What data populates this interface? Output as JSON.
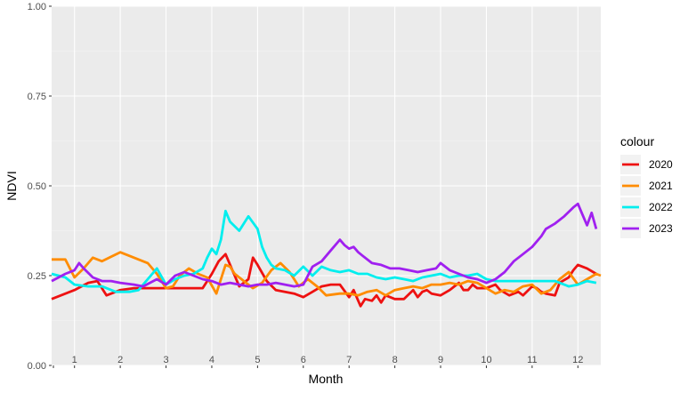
{
  "chart_data": {
    "type": "line",
    "xlabel": "Month",
    "ylabel": "NDVI",
    "xlim": [
      0.5,
      12.5
    ],
    "ylim": [
      0,
      1
    ],
    "y_ticks": [
      "0.00",
      "0.25",
      "0.50",
      "0.75",
      "1.00"
    ],
    "y_tick_values": [
      0,
      0.25,
      0.5,
      0.75,
      1
    ],
    "x_tick_labels": [
      "1",
      "2",
      "3",
      "4",
      "5",
      "6",
      "7",
      "8",
      "9",
      "10",
      "11",
      "12"
    ],
    "grid": true,
    "legend_title": "colour",
    "legend_position": "right",
    "series": [
      {
        "name": "2020",
        "color": "#ee1111",
        "x": [
          0.5,
          1.0,
          1.3,
          1.5,
          1.7,
          2.0,
          2.3,
          2.6,
          3.0,
          3.5,
          3.8,
          4.0,
          4.15,
          4.3,
          4.5,
          4.6,
          4.8,
          4.9,
          5.0,
          5.2,
          5.4,
          5.6,
          5.8,
          6.0,
          6.2,
          6.4,
          6.6,
          6.8,
          7.0,
          7.1,
          7.2,
          7.25,
          7.35,
          7.5,
          7.6,
          7.7,
          7.8,
          8.0,
          8.2,
          8.4,
          8.5,
          8.6,
          8.7,
          8.8,
          9.0,
          9.2,
          9.4,
          9.5,
          9.6,
          9.7,
          9.8,
          10.0,
          10.2,
          10.3,
          10.5,
          10.7,
          10.8,
          11.0,
          11.1,
          11.2,
          11.3,
          11.5,
          11.6,
          11.8,
          11.9,
          12.0,
          12.2,
          12.4
        ],
        "y": [
          0.185,
          0.21,
          0.23,
          0.235,
          0.195,
          0.21,
          0.215,
          0.215,
          0.215,
          0.215,
          0.215,
          0.255,
          0.29,
          0.31,
          0.25,
          0.22,
          0.24,
          0.3,
          0.28,
          0.235,
          0.21,
          0.205,
          0.2,
          0.19,
          0.205,
          0.22,
          0.225,
          0.225,
          0.19,
          0.21,
          0.18,
          0.165,
          0.185,
          0.18,
          0.195,
          0.175,
          0.195,
          0.185,
          0.185,
          0.21,
          0.19,
          0.205,
          0.21,
          0.2,
          0.195,
          0.21,
          0.23,
          0.21,
          0.21,
          0.225,
          0.215,
          0.215,
          0.225,
          0.21,
          0.195,
          0.205,
          0.195,
          0.22,
          0.215,
          0.205,
          0.2,
          0.195,
          0.23,
          0.245,
          0.265,
          0.28,
          0.27,
          0.255
        ]
      },
      {
        "name": "2021",
        "color": "#ff8c00",
        "x": [
          0.5,
          0.8,
          1.0,
          1.2,
          1.4,
          1.6,
          2.0,
          2.3,
          2.6,
          2.8,
          3.0,
          3.15,
          3.3,
          3.5,
          3.7,
          3.9,
          4.1,
          4.2,
          4.3,
          4.4,
          4.5,
          4.7,
          4.9,
          5.1,
          5.3,
          5.5,
          5.7,
          5.9,
          6.1,
          6.3,
          6.5,
          6.8,
          7.0,
          7.2,
          7.4,
          7.6,
          7.8,
          8.0,
          8.2,
          8.4,
          8.6,
          8.8,
          9.0,
          9.2,
          9.4,
          9.6,
          9.8,
          10.0,
          10.2,
          10.4,
          10.6,
          10.8,
          11.0,
          11.2,
          11.4,
          11.6,
          11.8,
          12.0,
          12.2,
          12.4,
          12.5
        ],
        "y": [
          0.295,
          0.295,
          0.245,
          0.27,
          0.3,
          0.29,
          0.315,
          0.3,
          0.285,
          0.255,
          0.215,
          0.22,
          0.25,
          0.27,
          0.255,
          0.245,
          0.2,
          0.24,
          0.28,
          0.275,
          0.255,
          0.235,
          0.215,
          0.23,
          0.265,
          0.285,
          0.26,
          0.22,
          0.24,
          0.22,
          0.195,
          0.2,
          0.2,
          0.195,
          0.205,
          0.21,
          0.195,
          0.21,
          0.215,
          0.22,
          0.215,
          0.225,
          0.225,
          0.23,
          0.225,
          0.235,
          0.23,
          0.215,
          0.2,
          0.21,
          0.205,
          0.22,
          0.225,
          0.2,
          0.21,
          0.24,
          0.26,
          0.225,
          0.24,
          0.255,
          0.25
        ]
      },
      {
        "name": "2022",
        "color": "#00eeee",
        "x": [
          0.5,
          0.8,
          1.0,
          1.3,
          1.6,
          1.9,
          2.2,
          2.4,
          2.6,
          2.8,
          3.0,
          3.2,
          3.4,
          3.6,
          3.8,
          3.9,
          4.0,
          4.1,
          4.2,
          4.3,
          4.4,
          4.6,
          4.8,
          5.0,
          5.1,
          5.2,
          5.3,
          5.4,
          5.6,
          5.8,
          6.0,
          6.2,
          6.4,
          6.6,
          6.8,
          7.0,
          7.2,
          7.4,
          7.6,
          7.8,
          8.0,
          8.2,
          8.4,
          8.6,
          8.8,
          9.0,
          9.2,
          9.4,
          9.6,
          9.8,
          10.0,
          10.2,
          10.5,
          10.8,
          11.0,
          11.3,
          11.5,
          11.8,
          12.0,
          12.2,
          12.4
        ],
        "y": [
          0.255,
          0.245,
          0.225,
          0.22,
          0.22,
          0.205,
          0.205,
          0.21,
          0.24,
          0.27,
          0.225,
          0.24,
          0.25,
          0.255,
          0.27,
          0.3,
          0.325,
          0.31,
          0.35,
          0.43,
          0.4,
          0.375,
          0.415,
          0.38,
          0.33,
          0.3,
          0.28,
          0.27,
          0.265,
          0.25,
          0.275,
          0.25,
          0.275,
          0.265,
          0.26,
          0.265,
          0.255,
          0.255,
          0.245,
          0.24,
          0.245,
          0.24,
          0.235,
          0.245,
          0.25,
          0.255,
          0.245,
          0.25,
          0.25,
          0.255,
          0.24,
          0.235,
          0.235,
          0.235,
          0.235,
          0.235,
          0.235,
          0.22,
          0.225,
          0.235,
          0.23
        ]
      },
      {
        "name": "2023",
        "color": "#a020f0",
        "x": [
          0.5,
          0.8,
          1.0,
          1.1,
          1.2,
          1.4,
          1.6,
          1.8,
          2.0,
          2.3,
          2.5,
          2.8,
          3.0,
          3.2,
          3.4,
          3.6,
          3.8,
          4.0,
          4.2,
          4.4,
          4.6,
          4.8,
          5.0,
          5.2,
          5.4,
          5.6,
          5.8,
          6.0,
          6.2,
          6.4,
          6.6,
          6.8,
          6.9,
          7.0,
          7.1,
          7.2,
          7.3,
          7.5,
          7.7,
          7.9,
          8.1,
          8.3,
          8.5,
          8.7,
          8.9,
          9.0,
          9.2,
          9.4,
          9.6,
          9.8,
          10.0,
          10.2,
          10.4,
          10.6,
          10.8,
          11.0,
          11.2,
          11.3,
          11.5,
          11.7,
          11.9,
          12.0,
          12.1,
          12.2,
          12.3,
          12.4
        ],
        "y": [
          0.235,
          0.255,
          0.265,
          0.285,
          0.27,
          0.245,
          0.235,
          0.235,
          0.23,
          0.225,
          0.22,
          0.24,
          0.225,
          0.25,
          0.26,
          0.25,
          0.24,
          0.235,
          0.225,
          0.23,
          0.225,
          0.22,
          0.225,
          0.225,
          0.23,
          0.225,
          0.22,
          0.225,
          0.275,
          0.29,
          0.32,
          0.35,
          0.335,
          0.325,
          0.33,
          0.315,
          0.305,
          0.285,
          0.28,
          0.27,
          0.27,
          0.265,
          0.26,
          0.265,
          0.27,
          0.285,
          0.265,
          0.255,
          0.245,
          0.24,
          0.23,
          0.24,
          0.26,
          0.29,
          0.31,
          0.33,
          0.36,
          0.38,
          0.395,
          0.415,
          0.44,
          0.45,
          0.42,
          0.39,
          0.425,
          0.38
        ]
      }
    ]
  }
}
